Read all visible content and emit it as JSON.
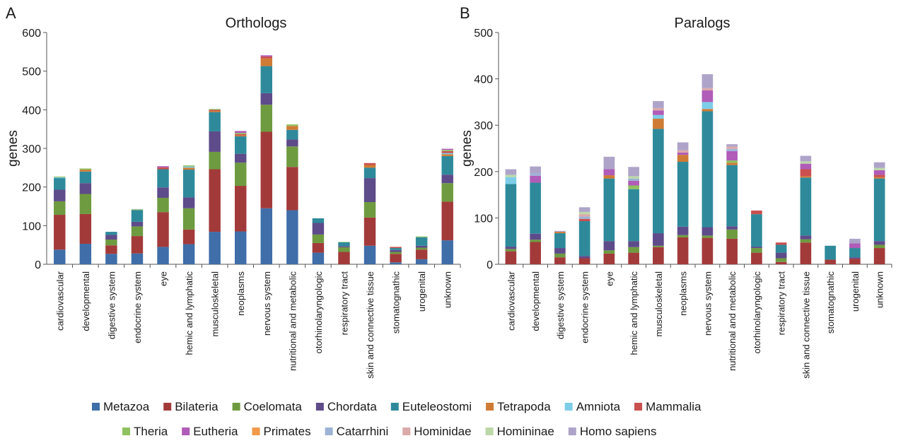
{
  "panels": [
    "A",
    "B"
  ],
  "legend": [
    {
      "name": "Metazoa",
      "color": "#3f6ea8"
    },
    {
      "name": "Bilateria",
      "color": "#a33a3a"
    },
    {
      "name": "Coelomata",
      "color": "#6e9b40"
    },
    {
      "name": "Chordata",
      "color": "#5e4b8a"
    },
    {
      "name": "Euteleostomi",
      "color": "#2e8a9b"
    },
    {
      "name": "Tetrapoda",
      "color": "#d07b35"
    },
    {
      "name": "Amniota",
      "color": "#7dcde8"
    },
    {
      "name": "Mammalia",
      "color": "#c9504f"
    },
    {
      "name": "Theria",
      "color": "#8fc160"
    },
    {
      "name": "Eutheria",
      "color": "#b05cb8"
    },
    {
      "name": "Primates",
      "color": "#f2994a"
    },
    {
      "name": "Catarrhini",
      "color": "#9db3d6"
    },
    {
      "name": "Hominidae",
      "color": "#dca9a9"
    },
    {
      "name": "Homininae",
      "color": "#bcd8a8"
    },
    {
      "name": "Homo sapiens",
      "color": "#aea4c9"
    }
  ],
  "chart_data": [
    {
      "type": "bar",
      "stacked": true,
      "title": "Orthologs",
      "ylabel": "genes",
      "ylim": [
        0,
        600
      ],
      "yticks": [
        0,
        100,
        200,
        300,
        400,
        500,
        600
      ],
      "categories": [
        "cardiovascular",
        "developmental",
        "digestive system",
        "endocrine system",
        "eye",
        "hemic and lymphatic",
        "musculoskeletal",
        "neoplasms",
        "nervous system",
        "nutritional and metabolic",
        "otorhinolaryngologic",
        "respiratory tract",
        "skin and connective tissue",
        "stomatognathic",
        "urogenital",
        "unknown"
      ],
      "series": [
        {
          "name": "Metazoa",
          "values": [
            38,
            53,
            27,
            28,
            45,
            52,
            84,
            85,
            145,
            140,
            30,
            0,
            48,
            5,
            13,
            62
          ]
        },
        {
          "name": "Bilateria",
          "values": [
            90,
            77,
            22,
            45,
            90,
            38,
            162,
            118,
            198,
            112,
            25,
            32,
            73,
            22,
            25,
            100
          ]
        },
        {
          "name": "Coelomata",
          "values": [
            35,
            52,
            15,
            25,
            37,
            55,
            45,
            60,
            70,
            53,
            22,
            12,
            40,
            5,
            5,
            48
          ]
        },
        {
          "name": "Chordata",
          "values": [
            30,
            28,
            12,
            12,
            27,
            28,
            53,
            23,
            30,
            18,
            30,
            3,
            62,
            5,
            5,
            22
          ]
        },
        {
          "name": "Euteleostomi",
          "values": [
            30,
            30,
            8,
            30,
            47,
            72,
            50,
            45,
            70,
            25,
            12,
            10,
            27,
            5,
            22,
            48
          ]
        },
        {
          "name": "Tetrapoda",
          "values": [
            0,
            5,
            0,
            0,
            0,
            5,
            3,
            3,
            20,
            10,
            0,
            0,
            7,
            0,
            0,
            5
          ]
        },
        {
          "name": "Amniota",
          "values": [
            2,
            0,
            0,
            0,
            0,
            3,
            0,
            0,
            0,
            0,
            0,
            0,
            0,
            0,
            0,
            3
          ]
        },
        {
          "name": "Mammalia",
          "values": [
            0,
            0,
            0,
            0,
            5,
            0,
            3,
            3,
            5,
            0,
            0,
            0,
            5,
            3,
            0,
            5
          ]
        },
        {
          "name": "Theria",
          "values": [
            2,
            3,
            0,
            2,
            0,
            3,
            2,
            3,
            0,
            4,
            0,
            1,
            0,
            0,
            2,
            3
          ]
        },
        {
          "name": "Eutheria",
          "values": [
            0,
            0,
            0,
            0,
            3,
            0,
            0,
            5,
            3,
            0,
            0,
            0,
            0,
            0,
            0,
            3
          ]
        },
        {
          "name": "Primates",
          "values": [
            0,
            0,
            0,
            0,
            0,
            0,
            0,
            0,
            0,
            0,
            0,
            0,
            0,
            0,
            0,
            0
          ]
        },
        {
          "name": "Catarrhini",
          "values": [
            0,
            0,
            0,
            1,
            0,
            0,
            0,
            0,
            0,
            0,
            0,
            0,
            0,
            0,
            0,
            0
          ]
        },
        {
          "name": "Hominidae",
          "values": [
            0,
            0,
            0,
            0,
            0,
            0,
            0,
            0,
            0,
            0,
            0,
            0,
            0,
            0,
            0,
            0
          ]
        },
        {
          "name": "Homininae",
          "values": [
            0,
            0,
            0,
            0,
            0,
            0,
            0,
            0,
            0,
            0,
            0,
            0,
            0,
            0,
            0,
            0
          ]
        },
        {
          "name": "Homo sapiens",
          "values": [
            0,
            0,
            0,
            0,
            0,
            0,
            0,
            0,
            0,
            0,
            0,
            0,
            0,
            0,
            0,
            0
          ]
        }
      ]
    },
    {
      "type": "bar",
      "stacked": true,
      "title": "Paralogs",
      "ylabel": "genes",
      "ylim": [
        0,
        500
      ],
      "yticks": [
        0,
        100,
        200,
        300,
        400,
        500
      ],
      "categories": [
        "cardiovascular",
        "developmental",
        "digestive system",
        "endocrine system",
        "eye",
        "hemic and lymphatic",
        "musculoskeletal",
        "neoplasms",
        "nervous system",
        "nutritional and metabolic",
        "otorhinolaryngologic",
        "respiratory tract",
        "skin and connective tissue",
        "stomatognathic",
        "urogenital",
        "unknown"
      ],
      "series": [
        {
          "name": "Metazoa",
          "values": [
            0,
            0,
            0,
            0,
            0,
            0,
            0,
            0,
            0,
            0,
            0,
            0,
            0,
            0,
            0,
            0
          ]
        },
        {
          "name": "Bilateria",
          "values": [
            28,
            48,
            15,
            13,
            23,
            25,
            37,
            58,
            57,
            55,
            25,
            5,
            47,
            10,
            12,
            35
          ]
        },
        {
          "name": "Coelomata",
          "values": [
            5,
            5,
            8,
            0,
            7,
            12,
            3,
            5,
            5,
            20,
            10,
            8,
            7,
            0,
            0,
            7
          ]
        },
        {
          "name": "Chordata",
          "values": [
            5,
            13,
            12,
            5,
            20,
            13,
            27,
            18,
            18,
            7,
            3,
            12,
            8,
            0,
            3,
            8
          ]
        },
        {
          "name": "Euteleostomi",
          "values": [
            135,
            110,
            32,
            75,
            135,
            112,
            225,
            140,
            250,
            132,
            70,
            17,
            125,
            30,
            20,
            135
          ]
        },
        {
          "name": "Tetrapoda",
          "values": [
            0,
            0,
            3,
            0,
            7,
            0,
            22,
            15,
            5,
            5,
            0,
            0,
            3,
            0,
            0,
            3
          ]
        },
        {
          "name": "Amniota",
          "values": [
            15,
            0,
            0,
            0,
            0,
            0,
            8,
            0,
            15,
            0,
            0,
            0,
            0,
            0,
            0,
            0
          ]
        },
        {
          "name": "Mammalia",
          "values": [
            0,
            0,
            0,
            5,
            0,
            0,
            0,
            0,
            0,
            0,
            8,
            5,
            15,
            0,
            0,
            5
          ]
        },
        {
          "name": "Theria",
          "values": [
            0,
            0,
            0,
            0,
            0,
            8,
            0,
            0,
            0,
            5,
            0,
            0,
            0,
            0,
            0,
            0
          ]
        },
        {
          "name": "Eutheria",
          "values": [
            0,
            15,
            0,
            0,
            13,
            10,
            10,
            5,
            25,
            20,
            0,
            0,
            12,
            0,
            10,
            10
          ]
        },
        {
          "name": "Primates",
          "values": [
            0,
            0,
            0,
            0,
            0,
            0,
            0,
            0,
            0,
            0,
            0,
            0,
            0,
            0,
            0,
            0
          ]
        },
        {
          "name": "Catarrhini",
          "values": [
            0,
            5,
            0,
            5,
            0,
            5,
            0,
            0,
            0,
            5,
            0,
            0,
            0,
            0,
            0,
            0
          ]
        },
        {
          "name": "Hominidae",
          "values": [
            0,
            0,
            0,
            5,
            0,
            0,
            5,
            5,
            5,
            5,
            0,
            0,
            0,
            0,
            0,
            0
          ]
        },
        {
          "name": "Homininae",
          "values": [
            5,
            0,
            0,
            5,
            0,
            5,
            0,
            0,
            0,
            0,
            0,
            0,
            5,
            0,
            0,
            5
          ]
        },
        {
          "name": "Homo sapiens",
          "values": [
            12,
            15,
            2,
            10,
            27,
            20,
            15,
            17,
            30,
            5,
            0,
            0,
            12,
            0,
            10,
            12
          ]
        }
      ]
    }
  ]
}
